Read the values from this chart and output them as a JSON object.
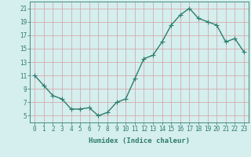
{
  "x": [
    0,
    1,
    2,
    3,
    4,
    5,
    6,
    7,
    8,
    9,
    10,
    11,
    12,
    13,
    14,
    15,
    16,
    17,
    18,
    19,
    20,
    21,
    22,
    23
  ],
  "y": [
    11,
    9.5,
    8,
    7.5,
    6,
    6,
    6.2,
    5,
    5.5,
    7,
    7.5,
    10.5,
    13.5,
    14,
    16,
    18.5,
    20,
    21,
    19.5,
    19,
    18.5,
    16,
    16.5,
    14.5
  ],
  "line_color": "#2e7d6e",
  "marker": "D",
  "marker_size": 2.0,
  "bg_color": "#d5eeee",
  "grid_color": "#d4a0a0",
  "xlabel": "Humidex (Indice chaleur)",
  "ylim": [
    4,
    22
  ],
  "xlim": [
    -0.5,
    23.5
  ],
  "yticks": [
    5,
    7,
    9,
    11,
    13,
    15,
    17,
    19,
    21
  ],
  "xticks": [
    0,
    1,
    2,
    3,
    4,
    5,
    6,
    7,
    8,
    9,
    10,
    11,
    12,
    13,
    14,
    15,
    16,
    17,
    18,
    19,
    20,
    21,
    22,
    23
  ],
  "axis_color": "#2e7d6e",
  "tick_color": "#2e7d6e",
  "label_color": "#2e7d6e",
  "font_size_ticks": 5.5,
  "font_size_label": 6.5,
  "linewidth": 1.0
}
